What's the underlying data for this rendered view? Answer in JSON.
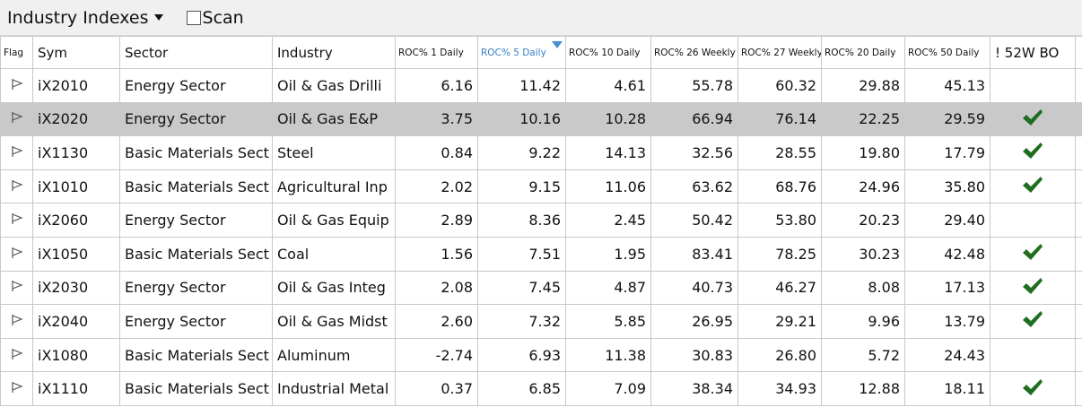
{
  "toolbar": {
    "title": "Industry Indexes",
    "scan": "Scan"
  },
  "table": {
    "columns": [
      "Flag",
      "Sym",
      "Sector",
      "Industry",
      "ROC% 1 Daily",
      "ROC% 5 Daily",
      "ROC% 10 Daily",
      "ROC% 26 Weekly",
      "ROC% 27 Weekly",
      "ROC% 20 Daily",
      "ROC% 50 Daily",
      "! 52W BO"
    ],
    "rows": [
      {
        "sym": "iX2010",
        "sector": "Energy Sector",
        "industry": "Oil & Gas Drilli",
        "values": [
          "6.16",
          "11.42",
          "4.61",
          "55.78",
          "60.32",
          "29.88",
          "45.13"
        ],
        "breakout": false
      },
      {
        "sym": "iX2020",
        "sector": "Energy Sector",
        "industry": "Oil & Gas E&P",
        "values": [
          "3.75",
          "10.16",
          "10.28",
          "66.94",
          "76.14",
          "22.25",
          "29.59"
        ],
        "breakout": true,
        "selected": true
      },
      {
        "sym": "iX1130",
        "sector": "Basic Materials Sect",
        "industry": "Steel",
        "values": [
          "0.84",
          "9.22",
          "14.13",
          "32.56",
          "28.55",
          "19.80",
          "17.79"
        ],
        "breakout": true
      },
      {
        "sym": "iX1010",
        "sector": "Basic Materials Sect",
        "industry": "Agricultural Inp",
        "values": [
          "2.02",
          "9.15",
          "11.06",
          "63.62",
          "68.76",
          "24.96",
          "35.80"
        ],
        "breakout": true
      },
      {
        "sym": "iX2060",
        "sector": "Energy Sector",
        "industry": "Oil & Gas Equip",
        "values": [
          "2.89",
          "8.36",
          "2.45",
          "50.42",
          "53.80",
          "20.23",
          "29.40"
        ],
        "breakout": false
      },
      {
        "sym": "iX1050",
        "sector": "Basic Materials Sect",
        "industry": "Coal",
        "values": [
          "1.56",
          "7.51",
          "1.95",
          "83.41",
          "78.25",
          "30.23",
          "42.48"
        ],
        "breakout": true
      },
      {
        "sym": "iX2030",
        "sector": "Energy Sector",
        "industry": "Oil & Gas Integ",
        "values": [
          "2.08",
          "7.45",
          "4.87",
          "40.73",
          "46.27",
          "8.08",
          "17.13"
        ],
        "breakout": true
      },
      {
        "sym": "iX2040",
        "sector": "Energy Sector",
        "industry": "Oil & Gas Midst",
        "values": [
          "2.60",
          "7.32",
          "5.85",
          "26.95",
          "29.21",
          "9.96",
          "13.79"
        ],
        "breakout": true
      },
      {
        "sym": "iX1080",
        "sector": "Basic Materials Sect",
        "industry": "Aluminum",
        "values": [
          "-2.74",
          "6.93",
          "11.38",
          "30.83",
          "26.80",
          "5.72",
          "24.43"
        ],
        "breakout": false
      },
      {
        "sym": "iX1110",
        "sector": "Basic Materials Sect",
        "industry": "Industrial Metal",
        "values": [
          "0.37",
          "6.85",
          "7.09",
          "38.34",
          "34.93",
          "12.88",
          "18.11"
        ],
        "breakout": true
      }
    ]
  }
}
